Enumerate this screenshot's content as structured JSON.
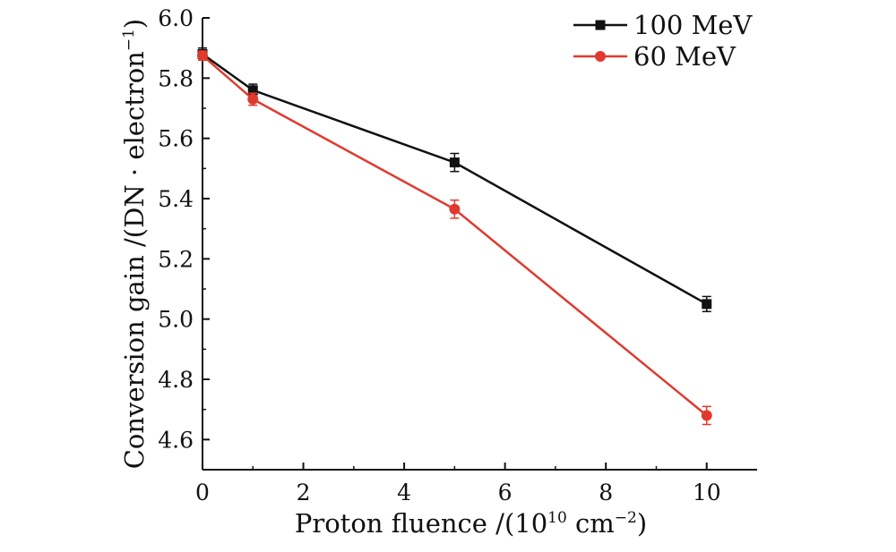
{
  "chart_data": {
    "type": "line",
    "title": "",
    "xlabel": "Proton fluence /(10",
    "xlabel_exp": "10",
    "xlabel_unit": " cm",
    "xlabel_unit_exp": "−2",
    "xlabel_close": ")",
    "ylabel": "Conversion gain /(DN · electron",
    "ylabel_exp": "−1",
    "ylabel_close": ")",
    "xlim": [
      0,
      11
    ],
    "ylim": [
      4.5,
      6.0
    ],
    "xticks": [
      0,
      2,
      4,
      6,
      8,
      10
    ],
    "xtick_labels": [
      "0",
      "2",
      "4",
      "6",
      "8",
      "10"
    ],
    "yticks": [
      4.6,
      4.8,
      5.0,
      5.2,
      5.4,
      5.6,
      5.8,
      6.0
    ],
    "ytick_labels": [
      "4.6",
      "4.8",
      "5.0",
      "5.2",
      "5.4",
      "5.6",
      "5.8",
      "6.0"
    ],
    "legend_position": "top-right",
    "series": [
      {
        "name": "100 MeV",
        "color": "#111111",
        "marker": "square",
        "x": [
          0,
          1,
          5,
          10
        ],
        "y": [
          5.88,
          5.76,
          5.52,
          5.05
        ],
        "err": [
          0.02,
          0.02,
          0.03,
          0.025
        ]
      },
      {
        "name": "60 MeV",
        "color": "#e03a2f",
        "marker": "circle",
        "x": [
          0,
          1,
          5,
          10
        ],
        "y": [
          5.875,
          5.73,
          5.365,
          4.68
        ],
        "err": [
          0.015,
          0.02,
          0.03,
          0.03
        ]
      }
    ]
  }
}
